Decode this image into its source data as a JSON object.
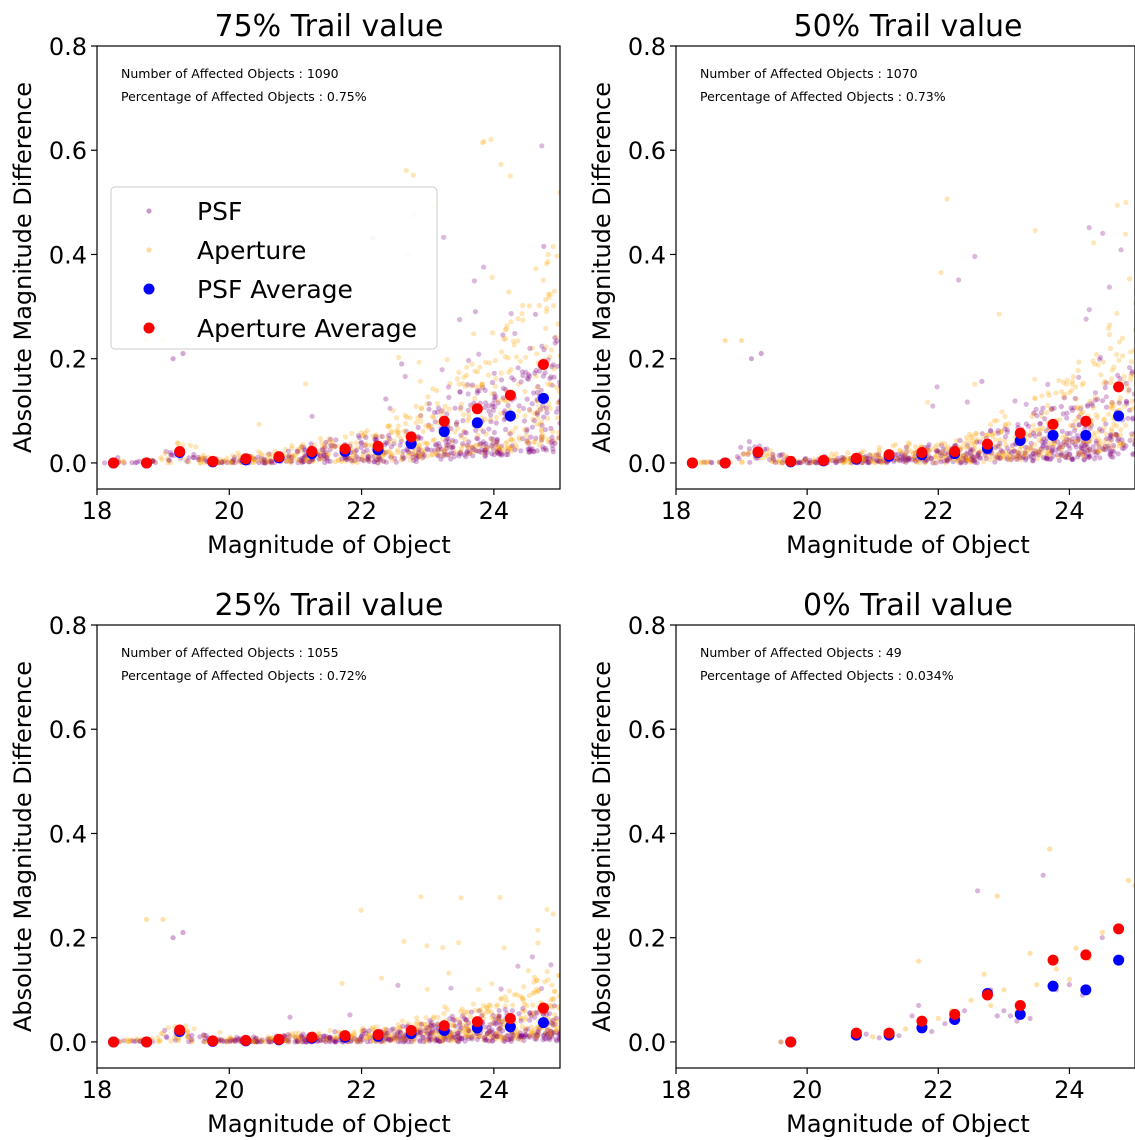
{
  "chart_data": [
    {
      "type": "scatter",
      "title": "75% Trail value",
      "xlabel": "Magnitude of Object",
      "ylabel": "Absolute Magnitude Difference",
      "xlim": [
        18,
        25
      ],
      "ylim": [
        -0.05,
        0.8
      ],
      "xticks": [
        18,
        20,
        22,
        24
      ],
      "yticks": [
        0.0,
        0.2,
        0.4,
        0.6,
        0.8
      ],
      "annotations": [
        "Number of Affected Objects : 1090",
        "Percentage of Affected Objects : 0.75%"
      ],
      "legend": {
        "position": "center-left",
        "entries": [
          "PSF",
          "Aperture",
          "PSF Average",
          "Aperture Average"
        ]
      },
      "scatter_spread": 1.0,
      "series": [
        {
          "name": "PSF Average",
          "x": [
            18.25,
            18.75,
            19.25,
            19.75,
            20.25,
            20.75,
            21.25,
            21.75,
            22.25,
            22.75,
            23.25,
            23.75,
            24.25,
            24.75
          ],
          "y": [
            0.0,
            0.0,
            0.02,
            0.002,
            0.006,
            0.01,
            0.018,
            0.022,
            0.025,
            0.037,
            0.06,
            0.077,
            0.09,
            0.124
          ]
        },
        {
          "name": "Aperture Average",
          "x": [
            18.25,
            18.75,
            19.25,
            19.75,
            20.25,
            20.75,
            21.25,
            21.75,
            22.25,
            22.75,
            23.25,
            23.75,
            24.25,
            24.75
          ],
          "y": [
            0.0,
            0.0,
            0.022,
            0.003,
            0.008,
            0.012,
            0.022,
            0.027,
            0.032,
            0.05,
            0.08,
            0.104,
            0.13,
            0.189
          ]
        }
      ]
    },
    {
      "type": "scatter",
      "title": "50% Trail value",
      "xlabel": "Magnitude of Object",
      "ylabel": "Absolute Magnitude Difference",
      "xlim": [
        18,
        25
      ],
      "ylim": [
        -0.05,
        0.8
      ],
      "xticks": [
        18,
        20,
        22,
        24
      ],
      "yticks": [
        0.0,
        0.2,
        0.4,
        0.6,
        0.8
      ],
      "annotations": [
        "Number of Affected Objects : 1070",
        "Percentage of Affected Objects : 0.73%"
      ],
      "scatter_spread": 0.8,
      "series": [
        {
          "name": "PSF Average",
          "x": [
            18.25,
            18.75,
            19.25,
            19.75,
            20.25,
            20.75,
            21.25,
            21.75,
            22.25,
            22.75,
            23.25,
            23.75,
            24.25,
            24.75
          ],
          "y": [
            0.0,
            0.0,
            0.02,
            0.002,
            0.004,
            0.007,
            0.013,
            0.016,
            0.018,
            0.028,
            0.043,
            0.053,
            0.053,
            0.09
          ]
        },
        {
          "name": "Aperture Average",
          "x": [
            18.25,
            18.75,
            19.25,
            19.75,
            20.25,
            20.75,
            21.25,
            21.75,
            22.25,
            22.75,
            23.25,
            23.75,
            24.25,
            24.75
          ],
          "y": [
            0.0,
            0.0,
            0.021,
            0.003,
            0.005,
            0.009,
            0.016,
            0.02,
            0.022,
            0.036,
            0.057,
            0.074,
            0.08,
            0.146
          ]
        }
      ]
    },
    {
      "type": "scatter",
      "title": "25% Trail value",
      "xlabel": "Magnitude of Object",
      "ylabel": "Absolute Magnitude Difference",
      "xlim": [
        18,
        25
      ],
      "ylim": [
        -0.05,
        0.8
      ],
      "xticks": [
        18,
        20,
        22,
        24
      ],
      "yticks": [
        0.0,
        0.2,
        0.4,
        0.6,
        0.8
      ],
      "annotations": [
        "Number of Affected Objects : 1055",
        "Percentage of Affected Objects : 0.72%"
      ],
      "scatter_spread": 0.45,
      "series": [
        {
          "name": "PSF Average",
          "x": [
            18.25,
            18.75,
            19.25,
            19.75,
            20.25,
            20.75,
            21.25,
            21.75,
            22.25,
            22.75,
            23.25,
            23.75,
            24.25,
            24.75
          ],
          "y": [
            0.0,
            0.0,
            0.02,
            0.001,
            0.002,
            0.004,
            0.007,
            0.009,
            0.011,
            0.016,
            0.022,
            0.027,
            0.029,
            0.037
          ]
        },
        {
          "name": "Aperture Average",
          "x": [
            18.25,
            18.75,
            19.25,
            19.75,
            20.25,
            20.75,
            21.25,
            21.75,
            22.25,
            22.75,
            23.25,
            23.75,
            24.25,
            24.75
          ],
          "y": [
            0.0,
            0.0,
            0.023,
            0.002,
            0.003,
            0.005,
            0.009,
            0.012,
            0.014,
            0.022,
            0.031,
            0.039,
            0.045,
            0.065
          ]
        }
      ]
    },
    {
      "type": "scatter",
      "title": "0% Trail value",
      "xlabel": "Magnitude of Object",
      "ylabel": "Absolute Magnitude Difference",
      "xlim": [
        18,
        25
      ],
      "ylim": [
        -0.05,
        0.8
      ],
      "xticks": [
        18,
        20,
        22,
        24
      ],
      "yticks": [
        0.0,
        0.2,
        0.4,
        0.6,
        0.8
      ],
      "annotations": [
        "Number of Affected Objects : 49",
        "Percentage of Affected Objects : 0.034%"
      ],
      "series": [
        {
          "name": "PSF Average",
          "x": [
            19.75,
            20.75,
            21.25,
            21.75,
            22.25,
            22.75,
            23.25,
            23.75,
            24.25,
            24.75
          ],
          "y": [
            0.0,
            0.013,
            0.013,
            0.027,
            0.043,
            0.093,
            0.053,
            0.107,
            0.1,
            0.157
          ]
        },
        {
          "name": "Aperture Average",
          "x": [
            19.75,
            20.75,
            21.25,
            21.75,
            22.25,
            22.75,
            23.25,
            23.75,
            24.25,
            24.75
          ],
          "y": [
            0.0,
            0.017,
            0.017,
            0.04,
            0.053,
            0.09,
            0.07,
            0.157,
            0.167,
            0.217
          ]
        },
        {
          "name": "PSF",
          "x": [
            19.6,
            20.7,
            20.9,
            21.1,
            21.2,
            21.4,
            21.6,
            21.7,
            21.8,
            21.9,
            22.1,
            22.2,
            22.4,
            22.6,
            22.7,
            22.8,
            22.9,
            23.0,
            23.1,
            23.2,
            23.3,
            23.4,
            23.6,
            23.8,
            24.0,
            24.2,
            24.5,
            24.8
          ],
          "y": [
            0.0,
            0.01,
            0.015,
            0.008,
            0.02,
            0.012,
            0.05,
            0.07,
            0.03,
            0.02,
            0.035,
            0.04,
            0.06,
            0.29,
            0.09,
            0.1,
            0.05,
            0.06,
            0.05,
            0.04,
            0.07,
            0.045,
            0.32,
            0.1,
            0.11,
            0.09,
            0.2,
            0.16
          ]
        },
        {
          "name": "Aperture",
          "x": [
            19.6,
            20.8,
            21.0,
            21.3,
            21.5,
            21.7,
            21.8,
            22.0,
            22.2,
            22.3,
            22.5,
            22.7,
            22.8,
            22.9,
            23.0,
            23.2,
            23.4,
            23.5,
            23.7,
            23.8,
            24.0,
            24.1,
            24.3,
            24.5,
            24.7,
            24.9,
            25.0
          ],
          "y": [
            0.0,
            0.02,
            0.01,
            0.015,
            0.025,
            0.155,
            0.03,
            0.045,
            0.06,
            0.05,
            0.08,
            0.13,
            0.07,
            0.28,
            0.1,
            0.06,
            0.17,
            0.11,
            0.37,
            0.14,
            0.12,
            0.18,
            0.16,
            0.21,
            0.22,
            0.31,
            0.3
          ]
        }
      ]
    }
  ]
}
